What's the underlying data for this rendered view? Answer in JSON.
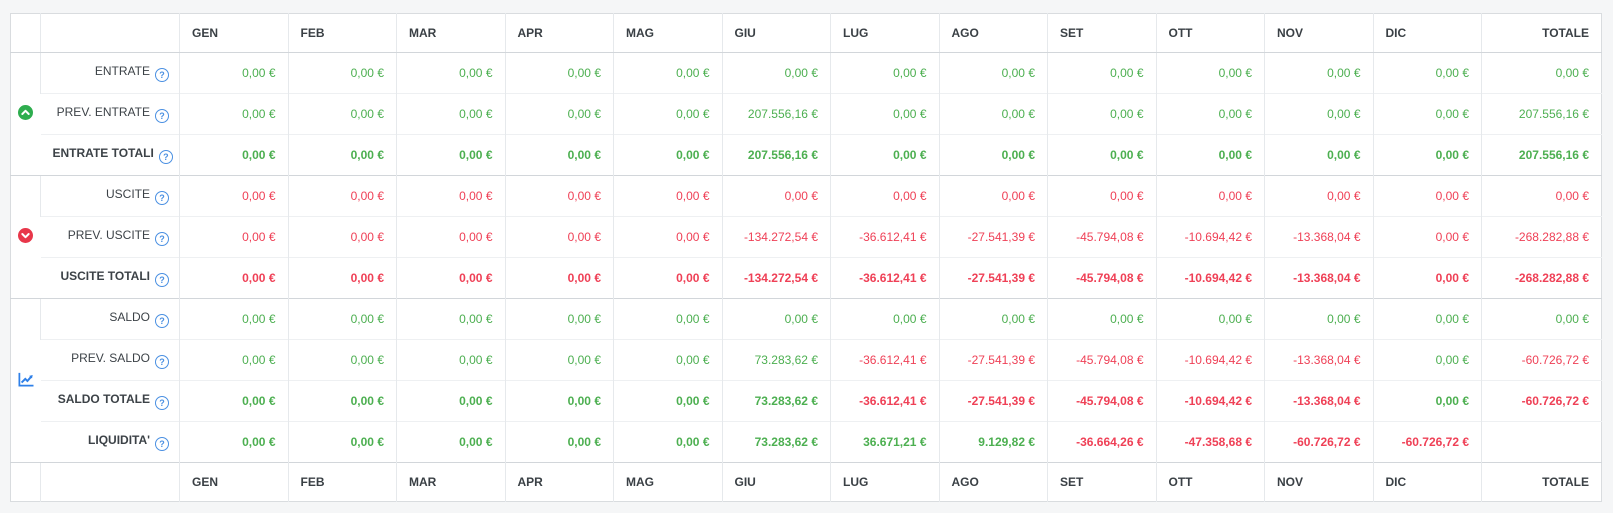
{
  "colors": {
    "green": "#4caf50",
    "red": "#ef4056",
    "header_text": "#3a4045",
    "help_blue": "#4a90e2",
    "icon_green": "#2ead4e",
    "icon_red": "#e8374a",
    "icon_blue": "#2f80e8"
  },
  "table": {
    "months": [
      "GEN",
      "FEB",
      "MAR",
      "APR",
      "MAG",
      "GIU",
      "LUG",
      "AGO",
      "SET",
      "OTT",
      "NOV",
      "DIC"
    ],
    "total_label": "TOTALE",
    "help_glyph": "?",
    "groups": [
      {
        "icon": "arrow-up-circle-icon",
        "rows": [
          0,
          1,
          2
        ]
      },
      {
        "icon": "arrow-down-circle-icon",
        "rows": [
          3,
          4,
          5
        ]
      },
      {
        "icon": "chart-line-icon",
        "rows": [
          6,
          7,
          8,
          9
        ]
      }
    ],
    "rows": [
      {
        "label": "ENTRATE",
        "bold": false,
        "values": [
          "0,00 €",
          "0,00 €",
          "0,00 €",
          "0,00 €",
          "0,00 €",
          "0,00 €",
          "0,00 €",
          "0,00 €",
          "0,00 €",
          "0,00 €",
          "0,00 €",
          "0,00 €",
          "0,00 €"
        ],
        "colors": [
          "g",
          "g",
          "g",
          "g",
          "g",
          "g",
          "g",
          "g",
          "g",
          "g",
          "g",
          "g",
          "g"
        ]
      },
      {
        "label": "PREV. ENTRATE",
        "bold": false,
        "values": [
          "0,00 €",
          "0,00 €",
          "0,00 €",
          "0,00 €",
          "0,00 €",
          "207.556,16 €",
          "0,00 €",
          "0,00 €",
          "0,00 €",
          "0,00 €",
          "0,00 €",
          "0,00 €",
          "207.556,16 €"
        ],
        "colors": [
          "g",
          "g",
          "g",
          "g",
          "g",
          "g",
          "g",
          "g",
          "g",
          "g",
          "g",
          "g",
          "g"
        ]
      },
      {
        "label": "ENTRATE TOTALI",
        "bold": true,
        "values": [
          "0,00 €",
          "0,00 €",
          "0,00 €",
          "0,00 €",
          "0,00 €",
          "207.556,16 €",
          "0,00 €",
          "0,00 €",
          "0,00 €",
          "0,00 €",
          "0,00 €",
          "0,00 €",
          "207.556,16 €"
        ],
        "colors": [
          "g",
          "g",
          "g",
          "g",
          "g",
          "g",
          "g",
          "g",
          "g",
          "g",
          "g",
          "g",
          "g"
        ]
      },
      {
        "label": "USCITE",
        "bold": false,
        "values": [
          "0,00 €",
          "0,00 €",
          "0,00 €",
          "0,00 €",
          "0,00 €",
          "0,00 €",
          "0,00 €",
          "0,00 €",
          "0,00 €",
          "0,00 €",
          "0,00 €",
          "0,00 €",
          "0,00 €"
        ],
        "colors": [
          "r",
          "r",
          "r",
          "r",
          "r",
          "r",
          "r",
          "r",
          "r",
          "r",
          "r",
          "r",
          "r"
        ]
      },
      {
        "label": "PREV. USCITE",
        "bold": false,
        "values": [
          "0,00 €",
          "0,00 €",
          "0,00 €",
          "0,00 €",
          "0,00 €",
          "-134.272,54 €",
          "-36.612,41 €",
          "-27.541,39 €",
          "-45.794,08 €",
          "-10.694,42 €",
          "-13.368,04 €",
          "0,00 €",
          "-268.282,88 €"
        ],
        "colors": [
          "r",
          "r",
          "r",
          "r",
          "r",
          "r",
          "r",
          "r",
          "r",
          "r",
          "r",
          "r",
          "r"
        ]
      },
      {
        "label": "USCITE TOTALI",
        "bold": true,
        "values": [
          "0,00 €",
          "0,00 €",
          "0,00 €",
          "0,00 €",
          "0,00 €",
          "-134.272,54 €",
          "-36.612,41 €",
          "-27.541,39 €",
          "-45.794,08 €",
          "-10.694,42 €",
          "-13.368,04 €",
          "0,00 €",
          "-268.282,88 €"
        ],
        "colors": [
          "r",
          "r",
          "r",
          "r",
          "r",
          "r",
          "r",
          "r",
          "r",
          "r",
          "r",
          "r",
          "r"
        ]
      },
      {
        "label": "SALDO",
        "bold": false,
        "values": [
          "0,00 €",
          "0,00 €",
          "0,00 €",
          "0,00 €",
          "0,00 €",
          "0,00 €",
          "0,00 €",
          "0,00 €",
          "0,00 €",
          "0,00 €",
          "0,00 €",
          "0,00 €",
          "0,00 €"
        ],
        "colors": [
          "g",
          "g",
          "g",
          "g",
          "g",
          "g",
          "g",
          "g",
          "g",
          "g",
          "g",
          "g",
          "g"
        ]
      },
      {
        "label": "PREV. SALDO",
        "bold": false,
        "values": [
          "0,00 €",
          "0,00 €",
          "0,00 €",
          "0,00 €",
          "0,00 €",
          "73.283,62 €",
          "-36.612,41 €",
          "-27.541,39 €",
          "-45.794,08 €",
          "-10.694,42 €",
          "-13.368,04 €",
          "0,00 €",
          "-60.726,72 €"
        ],
        "colors": [
          "g",
          "g",
          "g",
          "g",
          "g",
          "g",
          "r",
          "r",
          "r",
          "r",
          "r",
          "g",
          "r"
        ]
      },
      {
        "label": "SALDO TOTALE",
        "bold": true,
        "values": [
          "0,00 €",
          "0,00 €",
          "0,00 €",
          "0,00 €",
          "0,00 €",
          "73.283,62 €",
          "-36.612,41 €",
          "-27.541,39 €",
          "-45.794,08 €",
          "-10.694,42 €",
          "-13.368,04 €",
          "0,00 €",
          "-60.726,72 €"
        ],
        "colors": [
          "g",
          "g",
          "g",
          "g",
          "g",
          "g",
          "r",
          "r",
          "r",
          "r",
          "r",
          "g",
          "r"
        ]
      },
      {
        "label": "LIQUIDITA'",
        "bold": true,
        "values": [
          "0,00 €",
          "0,00 €",
          "0,00 €",
          "0,00 €",
          "0,00 €",
          "73.283,62 €",
          "36.671,21 €",
          "9.129,82 €",
          "-36.664,26 €",
          "-47.358,68 €",
          "-60.726,72 €",
          "-60.726,72 €",
          ""
        ],
        "colors": [
          "g",
          "g",
          "g",
          "g",
          "g",
          "g",
          "g",
          "g",
          "r",
          "r",
          "r",
          "r",
          ""
        ]
      }
    ]
  }
}
